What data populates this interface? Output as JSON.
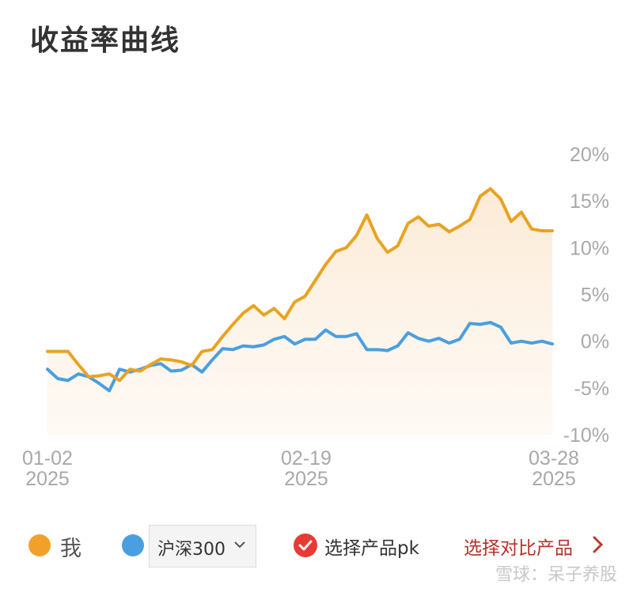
{
  "title": "收益率曲线",
  "colors": {
    "me": "#E8A320",
    "index": "#4A9FE0",
    "fill": "#FDF0DF",
    "axis_text": "#A8A8A8"
  },
  "chart_data": {
    "type": "line",
    "y_unit": "%",
    "ylim": [
      -10,
      20
    ],
    "y_ticks": [
      "20%",
      "15%",
      "10%",
      "5%",
      "0%",
      "-5%",
      "-10%"
    ],
    "x_ticks": [
      {
        "date": "01-02",
        "year": "2025"
      },
      {
        "date": "02-19",
        "year": "2025"
      },
      {
        "date": "03-28",
        "year": "2025"
      }
    ],
    "series": [
      {
        "name": "我",
        "values": [
          -1.1,
          -1.1,
          -1.1,
          -2.5,
          -3.8,
          -3.7,
          -3.5,
          -4.2,
          -3.0,
          -3.2,
          -2.5,
          -1.9,
          -2.0,
          -2.2,
          -2.6,
          -1.1,
          -0.9,
          0.5,
          1.8,
          3.0,
          3.8,
          2.8,
          3.5,
          2.4,
          4.2,
          4.8,
          6.5,
          8.2,
          9.6,
          10.0,
          11.3,
          13.5,
          11.0,
          9.5,
          10.2,
          12.6,
          13.3,
          12.3,
          12.5,
          11.7,
          12.3,
          13.0,
          15.5,
          16.3,
          15.2,
          12.8,
          13.8,
          12.0,
          11.8,
          11.8
        ]
      },
      {
        "name": "沪深300",
        "values": [
          -3.0,
          -4.0,
          -4.2,
          -3.5,
          -3.8,
          -4.5,
          -5.3,
          -3.0,
          -3.3,
          -3.0,
          -2.6,
          -2.4,
          -3.2,
          -3.1,
          -2.5,
          -3.3,
          -2.0,
          -0.8,
          -0.9,
          -0.5,
          -0.6,
          -0.4,
          0.2,
          0.5,
          -0.3,
          0.2,
          0.2,
          1.2,
          0.5,
          0.5,
          0.8,
          -0.9,
          -0.9,
          -1.0,
          -0.5,
          0.9,
          0.3,
          0.0,
          0.3,
          -0.2,
          0.2,
          1.9,
          1.8,
          2.0,
          1.5,
          -0.2,
          0.0,
          -0.2,
          0.0,
          -0.3
        ]
      }
    ]
  },
  "legend": {
    "me_label": "我",
    "index_select": "沪深300",
    "pk_label": "选择产品pk",
    "compare_link": "选择对比产品"
  },
  "watermark": "雪球：呆子养股"
}
